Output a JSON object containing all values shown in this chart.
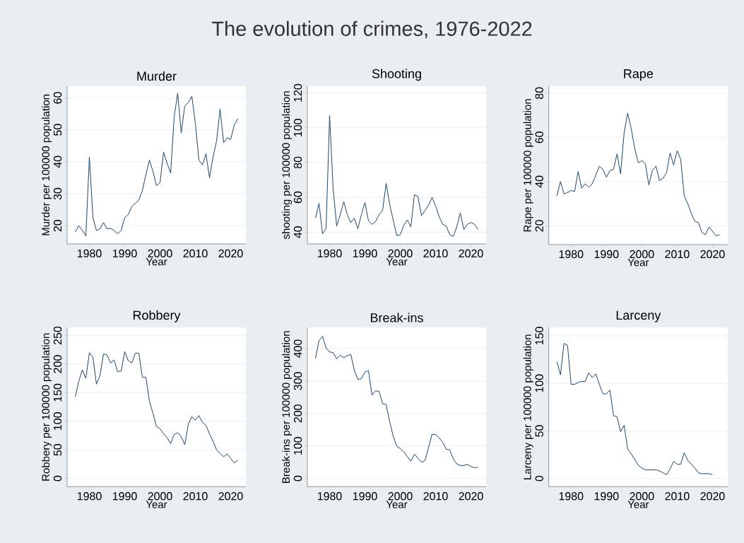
{
  "chart_data": [
    {
      "type": "line",
      "title": "Murder",
      "xlabel": "Year",
      "ylabel": "Murder per 100000 population",
      "annotations": [
        "The evolution of crimes, 1976-2022"
      ],
      "color": "#1a476f",
      "grid": "y",
      "xlim": [
        1973.7,
        2024.3
      ],
      "ylim": [
        14.3,
        63.7
      ],
      "xticks": [
        1980,
        1990,
        2000,
        2010,
        2020
      ],
      "yticks": [
        20,
        30,
        40,
        50,
        60
      ],
      "x": [
        1976,
        1977,
        1978,
        1979,
        1980,
        1981,
        1982,
        1983,
        1984,
        1985,
        1986,
        1987,
        1988,
        1989,
        1990,
        1991,
        1992,
        1993,
        1994,
        1995,
        1996,
        1997,
        1998,
        1999,
        2000,
        2001,
        2002,
        2003,
        2004,
        2005,
        2006,
        2007,
        2008,
        2009,
        2010,
        2011,
        2012,
        2013,
        2014,
        2015,
        2016,
        2017,
        2018,
        2019,
        2020,
        2021,
        2022
      ],
      "values": [
        18,
        20,
        18.5,
        16.8,
        41.5,
        22.5,
        18.5,
        19,
        21,
        19,
        19.2,
        18.5,
        17.5,
        18.5,
        22.5,
        23.5,
        26,
        27,
        28,
        31,
        36,
        40.5,
        37,
        32.5,
        33.5,
        43,
        39.5,
        36.5,
        54,
        61.5,
        49,
        57.5,
        58.5,
        60.5,
        52,
        40.5,
        39,
        42.5,
        35,
        41.5,
        46.5,
        56.5,
        46,
        47.5,
        47,
        51.5,
        53.5
      ]
    },
    {
      "type": "line",
      "title": "Shooting",
      "xlabel": "Year",
      "ylabel": "shooting per 100000 population",
      "color": "#1a476f",
      "grid": "y",
      "xlim": [
        1973.7,
        2024.3
      ],
      "ylim": [
        33.2,
        124
      ],
      "xticks": [
        1980,
        1990,
        2000,
        2010,
        2020
      ],
      "yticks": [
        40,
        60,
        80,
        100,
        120
      ],
      "x": [
        1976,
        1977,
        1978,
        1979,
        1980,
        1981,
        1982,
        1983,
        1984,
        1985,
        1986,
        1987,
        1988,
        1989,
        1990,
        1991,
        1992,
        1993,
        1994,
        1995,
        1996,
        1997,
        1998,
        1999,
        2000,
        2001,
        2002,
        2003,
        2004,
        2005,
        2006,
        2007,
        2008,
        2009,
        2010,
        2011,
        2012,
        2013,
        2014,
        2015,
        2016,
        2017,
        2018,
        2019,
        2020,
        2021,
        2022
      ],
      "values": [
        48,
        56.5,
        39,
        42,
        107,
        65,
        43.5,
        50,
        57.5,
        50,
        45.5,
        48,
        42,
        50,
        57,
        46.5,
        44.5,
        46,
        50,
        52.5,
        68,
        56,
        47,
        38,
        38.5,
        44,
        47,
        43,
        61.5,
        60.5,
        49.5,
        52.5,
        55.5,
        60,
        55,
        49,
        44.5,
        43.5,
        38.5,
        37.5,
        43,
        51,
        41.5,
        44.5,
        45.5,
        44.5,
        41.5
      ]
    },
    {
      "type": "line",
      "title": "Rape",
      "xlabel": "Year",
      "ylabel": "Rape per 100000 population",
      "color": "#1a476f",
      "grid": "y",
      "xlim": [
        1973.7,
        2024.3
      ],
      "ylim": [
        11.5,
        83.2
      ],
      "xticks": [
        1980,
        1990,
        2000,
        2010,
        2020
      ],
      "yticks": [
        20,
        40,
        60,
        80
      ],
      "x": [
        1976,
        1977,
        1978,
        1979,
        1980,
        1981,
        1982,
        1983,
        1984,
        1985,
        1986,
        1987,
        1988,
        1989,
        1990,
        1991,
        1992,
        1993,
        1994,
        1995,
        1996,
        1997,
        1998,
        1999,
        2000,
        2001,
        2002,
        2003,
        2004,
        2005,
        2006,
        2007,
        2008,
        2009,
        2010,
        2011,
        2012,
        2013,
        2014,
        2015,
        2016,
        2017,
        2018,
        2019,
        2020,
        2021,
        2022
      ],
      "values": [
        33.5,
        40,
        34.5,
        35,
        36,
        35.5,
        44.5,
        37,
        39,
        37.5,
        39,
        43,
        47,
        45.5,
        42,
        45,
        45.5,
        52.5,
        43.5,
        62,
        71,
        64,
        55,
        48.5,
        49.5,
        48,
        38.5,
        45,
        47,
        40.5,
        41.5,
        44,
        53,
        47.5,
        54,
        50,
        33.5,
        30,
        25.5,
        22,
        21.5,
        17,
        16,
        19.5,
        17.5,
        15.5,
        16
      ]
    },
    {
      "type": "line",
      "title": "Robbery",
      "xlabel": "Year",
      "ylabel": "Robbery per 100000 population",
      "color": "#1a476f",
      "grid": "y",
      "xlim": [
        1973.7,
        2024.3
      ],
      "ylim": [
        -14.4,
        264
      ],
      "xticks": [
        1980,
        1990,
        2000,
        2010,
        2020
      ],
      "yticks": [
        0,
        50,
        100,
        150,
        200,
        250
      ],
      "x": [
        1976,
        1977,
        1978,
        1979,
        1980,
        1981,
        1982,
        1983,
        1984,
        1985,
        1986,
        1987,
        1988,
        1989,
        1990,
        1991,
        1992,
        1993,
        1994,
        1995,
        1996,
        1997,
        1998,
        1999,
        2000,
        2001,
        2002,
        2003,
        2004,
        2005,
        2006,
        2007,
        2008,
        2009,
        2010,
        2011,
        2012,
        2013,
        2014,
        2015,
        2016,
        2017,
        2018,
        2019,
        2020,
        2021,
        2022
      ],
      "values": [
        143,
        170,
        190,
        175,
        220,
        212,
        165,
        180,
        218,
        216,
        202,
        207,
        187,
        188,
        222,
        206,
        202,
        219,
        219,
        177,
        177,
        135,
        114,
        91,
        87,
        78,
        71,
        61,
        77,
        80,
        73,
        59,
        95,
        108,
        102,
        110,
        98,
        93,
        78,
        65,
        50,
        44,
        38,
        43,
        35,
        27,
        32
      ]
    },
    {
      "type": "line",
      "title": "Break-ins",
      "xlabel": "Year",
      "ylabel": "Break-ins per 100000 population",
      "color": "#1a476f",
      "grid": "y",
      "xlim": [
        1973.7,
        2024.3
      ],
      "ylim": [
        -25.3,
        465
      ],
      "xticks": [
        1980,
        1990,
        2000,
        2010,
        2020
      ],
      "yticks": [
        0,
        100,
        200,
        300,
        400
      ],
      "x": [
        1976,
        1977,
        1978,
        1979,
        1980,
        1981,
        1982,
        1983,
        1984,
        1985,
        1986,
        1987,
        1988,
        1989,
        1990,
        1991,
        1992,
        1993,
        1994,
        1995,
        1996,
        1997,
        1998,
        1999,
        2000,
        2001,
        2002,
        2003,
        2004,
        2005,
        2006,
        2007,
        2008,
        2009,
        2010,
        2011,
        2012,
        2013,
        2014,
        2015,
        2016,
        2017,
        2018,
        2019,
        2020,
        2021,
        2022
      ],
      "values": [
        370,
        425,
        438,
        402,
        390,
        388,
        368,
        380,
        372,
        378,
        382,
        333,
        305,
        307,
        328,
        332,
        257,
        270,
        268,
        230,
        228,
        175,
        130,
        100,
        92,
        82,
        67,
        53,
        75,
        62,
        50,
        55,
        95,
        136,
        135,
        125,
        112,
        90,
        88,
        60,
        45,
        40,
        40,
        43,
        37,
        33,
        34
      ]
    },
    {
      "type": "line",
      "title": "Larceny",
      "xlabel": "Year",
      "ylabel": "Larceny per 100000 population",
      "color": "#1a476f",
      "grid": "y",
      "xlim": [
        1973.7,
        2024.3
      ],
      "ylim": [
        -8.6,
        158.7
      ],
      "xticks": [
        1980,
        1990,
        2000,
        2010,
        2020
      ],
      "yticks": [
        0,
        50,
        100,
        150
      ],
      "x": [
        1976,
        1977,
        1978,
        1979,
        1980,
        1981,
        1982,
        1983,
        1984,
        1985,
        1986,
        1987,
        1988,
        1989,
        1990,
        1991,
        1992,
        1993,
        1994,
        1995,
        1996,
        1997,
        1998,
        1999,
        2000,
        2001,
        2002,
        2003,
        2004,
        2005,
        2006,
        2007,
        2008,
        2009,
        2010,
        2011,
        2012,
        2013,
        2014,
        2015,
        2016,
        2017,
        2018,
        2019,
        2020
      ],
      "values": [
        123,
        109,
        142,
        140,
        99,
        99,
        101,
        102,
        102,
        111,
        106,
        110,
        99,
        89,
        89,
        93,
        66,
        65,
        49,
        56,
        31,
        26,
        20,
        14,
        11,
        9,
        9,
        9,
        9,
        8,
        6,
        4,
        10,
        18,
        15,
        15,
        27,
        19,
        15,
        11,
        6,
        5,
        5,
        5,
        4
      ]
    }
  ]
}
